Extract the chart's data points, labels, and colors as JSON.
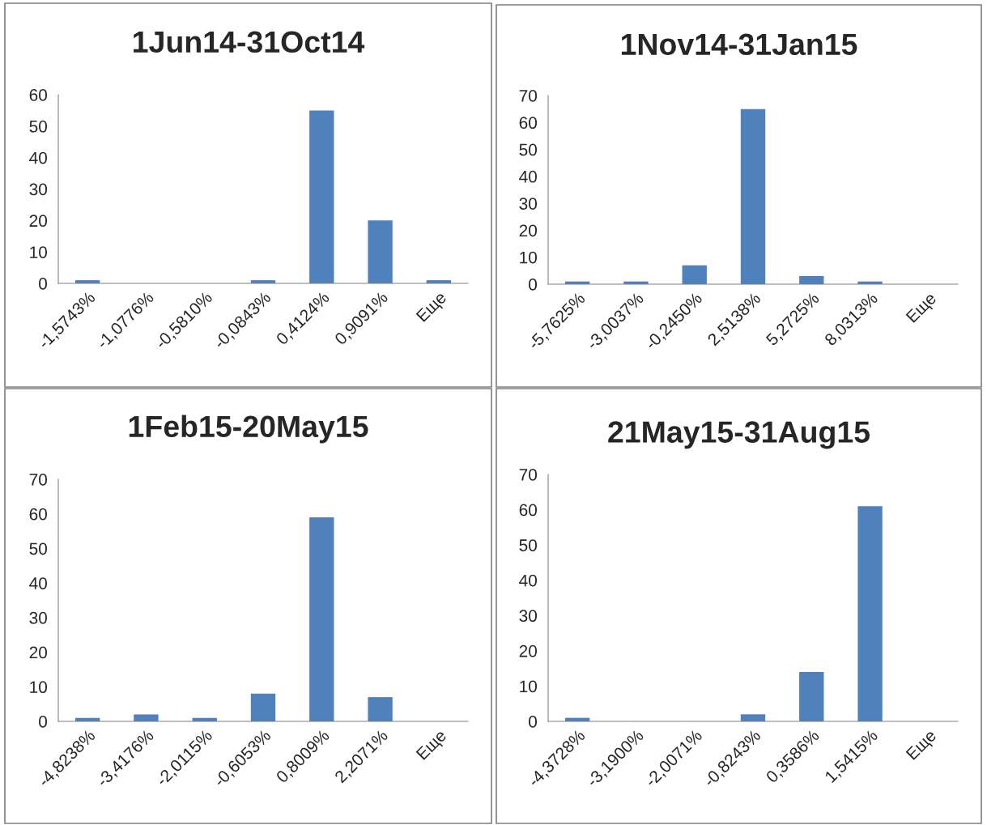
{
  "chart_data": [
    {
      "type": "bar",
      "title": "1Jun14-31Oct14",
      "categories": [
        "-1,5743%",
        "-1,0776%",
        "-0,5810%",
        "-0,0843%",
        "0,4124%",
        "0,9091%",
        "Еще"
      ],
      "values": [
        1,
        0,
        0,
        1,
        55,
        20,
        1
      ],
      "color": "#4f81bd",
      "ylim": [
        0,
        60
      ],
      "yticks": [
        0,
        10,
        20,
        30,
        40,
        50,
        60
      ],
      "grid": false,
      "legend": false
    },
    {
      "type": "bar",
      "title": "1Nov14-31Jan15",
      "categories": [
        "-5,7625%",
        "-3,0037%",
        "-0,2450%",
        "2,5138%",
        "5,2725%",
        "8,0313%",
        "Еще"
      ],
      "values": [
        1,
        1,
        7,
        65,
        3,
        1,
        0
      ],
      "color": "#4f81bd",
      "ylim": [
        0,
        70
      ],
      "yticks": [
        0,
        10,
        20,
        30,
        40,
        50,
        60,
        70
      ],
      "grid": false,
      "legend": false
    },
    {
      "type": "bar",
      "title": "1Feb15-20May15",
      "categories": [
        "-4,8238%",
        "-3,4176%",
        "-2,0115%",
        "-0,6053%",
        "0,8009%",
        "2,2071%",
        "Еще"
      ],
      "values": [
        1,
        2,
        1,
        8,
        59,
        7,
        0
      ],
      "color": "#4f81bd",
      "ylim": [
        0,
        70
      ],
      "yticks": [
        0,
        10,
        20,
        30,
        40,
        50,
        60,
        70
      ],
      "grid": false,
      "legend": false
    },
    {
      "type": "bar",
      "title": "21May15-31Aug15",
      "categories": [
        "-4,3728%",
        "-3,1900%",
        "-2,0071%",
        "-0,8243%",
        "0,3586%",
        "1,5415%",
        "Еще"
      ],
      "values": [
        1,
        0,
        0,
        2,
        14,
        61,
        0
      ],
      "color": "#4f81bd",
      "ylim": [
        0,
        70
      ],
      "yticks": [
        0,
        10,
        20,
        30,
        40,
        50,
        60,
        70
      ],
      "grid": false,
      "legend": false
    }
  ]
}
